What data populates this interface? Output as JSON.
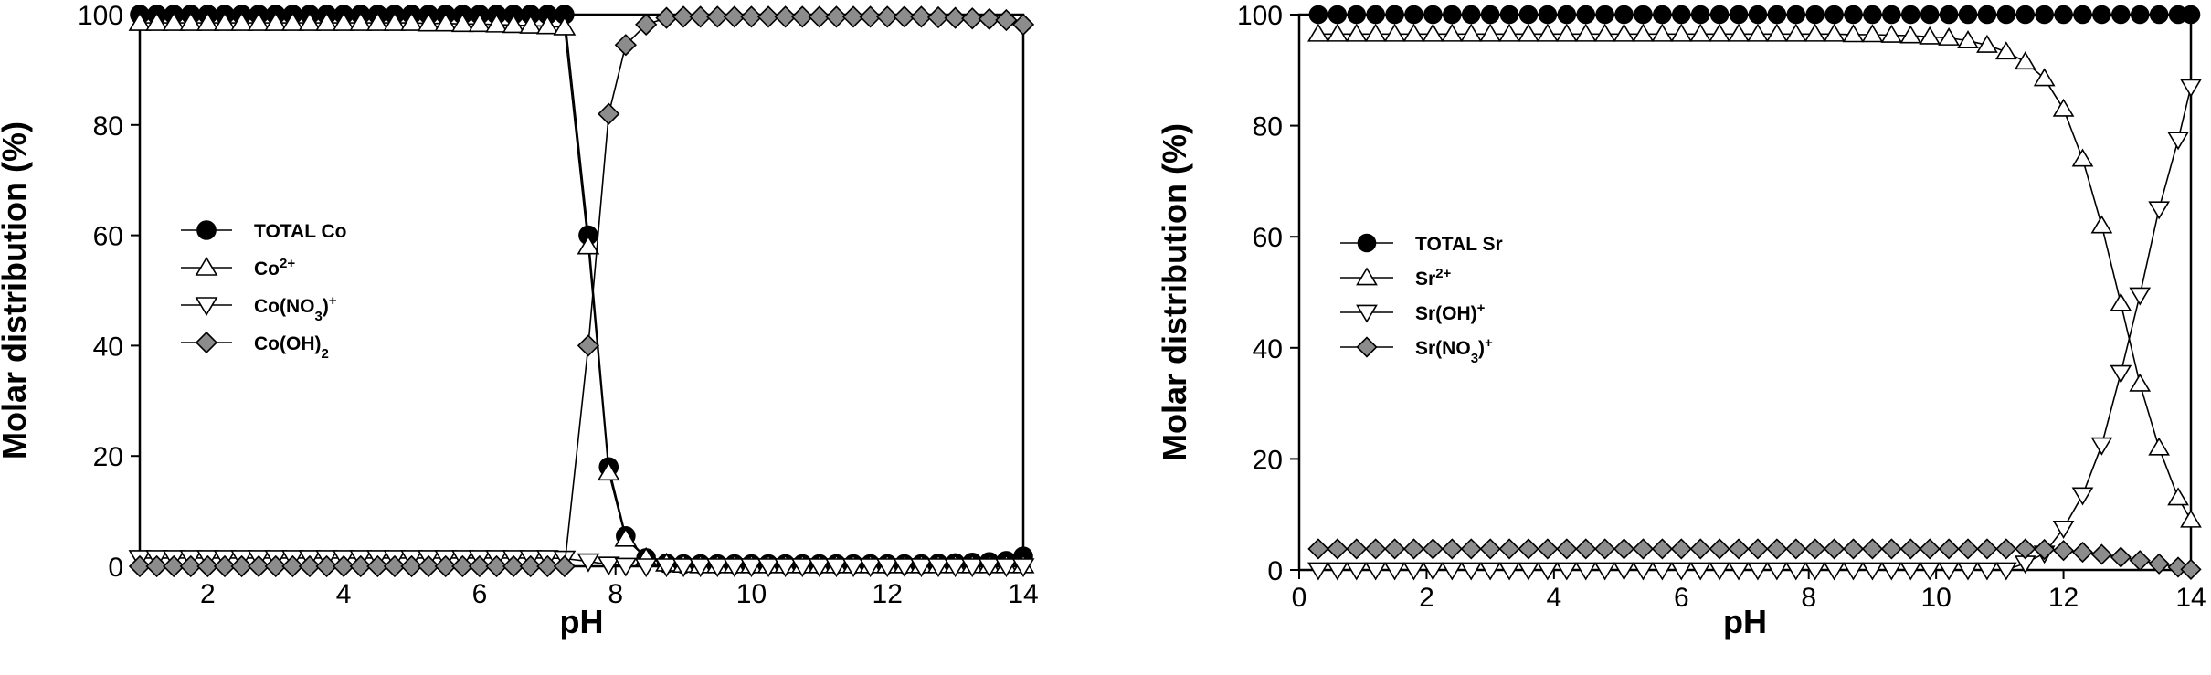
{
  "chart_data": [
    {
      "type": "line",
      "title": "",
      "xlabel": "pH",
      "ylabel": "Molar distribution (%)",
      "xlim": [
        1,
        14
      ],
      "ylim": [
        0,
        100
      ],
      "xticks": [
        2,
        4,
        6,
        8,
        10,
        12,
        14
      ],
      "yticks": [
        0,
        20,
        40,
        60,
        80,
        100
      ],
      "grid": false,
      "legend_position": "middle-left",
      "series": [
        {
          "name": "TOTAL Co",
          "legend": {
            "base": "TOTAL Co",
            "sub": "",
            "sup": "",
            "tail": ""
          },
          "marker": "circle",
          "fill": "#000000",
          "x": [
            1.0,
            1.25,
            1.5,
            1.75,
            2.0,
            2.25,
            2.5,
            2.75,
            3.0,
            3.25,
            3.5,
            3.75,
            4.0,
            4.25,
            4.5,
            4.75,
            5.0,
            5.25,
            5.5,
            5.75,
            6.0,
            6.25,
            6.5,
            6.75,
            7.0,
            7.25,
            7.6,
            7.9,
            8.15,
            8.45,
            8.75,
            9.0,
            9.25,
            9.5,
            9.75,
            10.0,
            10.25,
            10.5,
            10.75,
            11.0,
            11.25,
            11.5,
            11.75,
            12.0,
            12.25,
            12.5,
            12.75,
            13.0,
            13.25,
            13.5,
            13.75,
            14.0
          ],
          "y": [
            100,
            100,
            100,
            100,
            100,
            100,
            100,
            100,
            100,
            100,
            100,
            100,
            100,
            100,
            100,
            100,
            100,
            100,
            100,
            100,
            100,
            100,
            100,
            100,
            100,
            100,
            60,
            18,
            5.5,
            1.5,
            0.5,
            0.4,
            0.4,
            0.4,
            0.4,
            0.4,
            0.4,
            0.4,
            0.4,
            0.4,
            0.4,
            0.4,
            0.4,
            0.4,
            0.4,
            0.4,
            0.5,
            0.6,
            0.7,
            0.8,
            1.0,
            1.8
          ]
        },
        {
          "name": "Co2+",
          "legend": {
            "base": "Co",
            "sub": "",
            "sup": "2+",
            "tail": ""
          },
          "marker": "triangle-up",
          "fill": "#ffffff",
          "x": [
            1.0,
            1.25,
            1.5,
            1.75,
            2.0,
            2.25,
            2.5,
            2.75,
            3.0,
            3.25,
            3.5,
            3.75,
            4.0,
            4.25,
            4.5,
            4.75,
            5.0,
            5.25,
            5.5,
            5.75,
            6.0,
            6.25,
            6.5,
            6.75,
            7.0,
            7.25,
            7.6,
            7.9,
            8.15,
            8.45,
            8.75,
            9.0,
            9.25,
            9.5,
            9.75,
            10.0,
            10.25,
            10.5,
            10.75,
            11.0,
            11.25,
            11.5,
            11.75,
            12.0,
            12.25,
            12.5,
            12.75,
            13.0,
            13.25,
            13.5,
            13.75,
            14.0
          ],
          "y": [
            98.5,
            98.5,
            98.5,
            98.5,
            98.5,
            98.5,
            98.5,
            98.5,
            98.5,
            98.5,
            98.5,
            98.5,
            98.5,
            98.5,
            98.5,
            98.5,
            98.5,
            98.4,
            98.4,
            98.3,
            98.3,
            98.2,
            98.1,
            98.0,
            97.9,
            97.7,
            58,
            17,
            5,
            1.5,
            0.5,
            0.3,
            0.2,
            0.2,
            0.2,
            0.2,
            0.2,
            0.2,
            0.2,
            0.2,
            0.2,
            0.2,
            0.2,
            0.2,
            0.2,
            0.2,
            0.2,
            0.2,
            0.2,
            0.2,
            0.2,
            0.2
          ]
        },
        {
          "name": "Co(NO3)+",
          "legend": {
            "base": "Co(NO",
            "sub": "3",
            "sup": "+",
            "tail": ")"
          },
          "marker": "triangle-down",
          "fill": "#ffffff",
          "x": [
            1.0,
            1.25,
            1.5,
            1.75,
            2.0,
            2.25,
            2.5,
            2.75,
            3.0,
            3.25,
            3.5,
            3.75,
            4.0,
            4.25,
            4.5,
            4.75,
            5.0,
            5.25,
            5.5,
            5.75,
            6.0,
            6.25,
            6.5,
            6.75,
            7.0,
            7.25,
            7.6,
            7.9,
            8.15,
            8.45,
            8.75,
            9.0,
            9.25,
            9.5,
            9.75,
            10.0,
            10.25,
            10.5,
            10.75,
            11.0,
            11.25,
            11.5,
            11.75,
            12.0,
            12.25,
            12.5,
            12.75,
            13.0,
            13.25,
            13.5,
            13.75,
            14.0
          ],
          "y": [
            1.5,
            1.5,
            1.5,
            1.5,
            1.5,
            1.5,
            1.5,
            1.5,
            1.5,
            1.5,
            1.5,
            1.5,
            1.5,
            1.5,
            1.5,
            1.5,
            1.5,
            1.5,
            1.5,
            1.5,
            1.5,
            1.5,
            1.5,
            1.5,
            1.5,
            1.4,
            0.9,
            0.3,
            0.1,
            0,
            0,
            0,
            0,
            0,
            0,
            0,
            0,
            0,
            0,
            0,
            0,
            0,
            0,
            0,
            0,
            0,
            0,
            0,
            0,
            0,
            0,
            0
          ]
        },
        {
          "name": "Co(OH)2",
          "legend": {
            "base": "Co(OH)",
            "sub": "2",
            "sup": "",
            "tail": ""
          },
          "marker": "diamond",
          "fill": "#8c8c8c",
          "x": [
            1.0,
            1.25,
            1.5,
            1.75,
            2.0,
            2.25,
            2.5,
            2.75,
            3.0,
            3.25,
            3.5,
            3.75,
            4.0,
            4.25,
            4.5,
            4.75,
            5.0,
            5.25,
            5.5,
            5.75,
            6.0,
            6.25,
            6.5,
            6.75,
            7.0,
            7.25,
            7.6,
            7.9,
            8.15,
            8.45,
            8.75,
            9.0,
            9.25,
            9.5,
            9.75,
            10.0,
            10.25,
            10.5,
            10.75,
            11.0,
            11.25,
            11.5,
            11.75,
            12.0,
            12.25,
            12.5,
            12.75,
            13.0,
            13.25,
            13.5,
            13.75,
            14.0
          ],
          "y": [
            0,
            0,
            0,
            0,
            0,
            0,
            0,
            0,
            0,
            0,
            0,
            0,
            0,
            0,
            0,
            0,
            0,
            0,
            0,
            0,
            0,
            0,
            0,
            0,
            0,
            0,
            40,
            82,
            94.5,
            98.2,
            99.4,
            99.6,
            99.6,
            99.6,
            99.6,
            99.6,
            99.6,
            99.6,
            99.6,
            99.6,
            99.6,
            99.6,
            99.6,
            99.6,
            99.6,
            99.6,
            99.5,
            99.4,
            99.3,
            99.2,
            99.0,
            98.2
          ]
        }
      ]
    },
    {
      "type": "line",
      "title": "",
      "xlabel": "pH",
      "ylabel": "Molar distribution (%)",
      "xlim": [
        0,
        14
      ],
      "ylim": [
        0,
        100
      ],
      "xticks": [
        0,
        2,
        4,
        6,
        8,
        10,
        12,
        14
      ],
      "yticks": [
        0,
        20,
        40,
        60,
        80,
        100
      ],
      "grid": false,
      "legend_position": "middle-left",
      "series": [
        {
          "name": "TOTAL Sr",
          "legend": {
            "base": "TOTAL Sr",
            "sub": "",
            "sup": "",
            "tail": ""
          },
          "marker": "circle",
          "fill": "#000000",
          "x": [
            0.3,
            0.6,
            0.9,
            1.2,
            1.5,
            1.8,
            2.1,
            2.4,
            2.7,
            3.0,
            3.3,
            3.6,
            3.9,
            4.2,
            4.5,
            4.8,
            5.1,
            5.4,
            5.7,
            6.0,
            6.3,
            6.6,
            6.9,
            7.2,
            7.5,
            7.8,
            8.1,
            8.4,
            8.7,
            9.0,
            9.3,
            9.6,
            9.9,
            10.2,
            10.5,
            10.8,
            11.1,
            11.4,
            11.7,
            12.0,
            12.3,
            12.6,
            12.9,
            13.2,
            13.5,
            13.8,
            14.0
          ],
          "y": [
            100,
            100,
            100,
            100,
            100,
            100,
            100,
            100,
            100,
            100,
            100,
            100,
            100,
            100,
            100,
            100,
            100,
            100,
            100,
            100,
            100,
            100,
            100,
            100,
            100,
            100,
            100,
            100,
            100,
            100,
            100,
            100,
            100,
            100,
            100,
            100,
            100,
            100,
            100,
            100,
            100,
            100,
            100,
            100,
            100,
            100,
            100
          ]
        },
        {
          "name": "Sr2+",
          "legend": {
            "base": "Sr",
            "sub": "",
            "sup": "2+",
            "tail": ""
          },
          "marker": "triangle-up",
          "fill": "#ffffff",
          "x": [
            0.3,
            0.6,
            0.9,
            1.2,
            1.5,
            1.8,
            2.1,
            2.4,
            2.7,
            3.0,
            3.3,
            3.6,
            3.9,
            4.2,
            4.5,
            4.8,
            5.1,
            5.4,
            5.7,
            6.0,
            6.3,
            6.6,
            6.9,
            7.2,
            7.5,
            7.8,
            8.1,
            8.4,
            8.7,
            9.0,
            9.3,
            9.6,
            9.9,
            10.2,
            10.5,
            10.8,
            11.1,
            11.4,
            11.7,
            12.0,
            12.3,
            12.6,
            12.9,
            13.2,
            13.5,
            13.8,
            14.0
          ],
          "y": [
            96.5,
            96.5,
            96.5,
            96.5,
            96.5,
            96.5,
            96.5,
            96.5,
            96.5,
            96.5,
            96.5,
            96.5,
            96.5,
            96.5,
            96.5,
            96.5,
            96.5,
            96.5,
            96.5,
            96.5,
            96.5,
            96.5,
            96.5,
            96.5,
            96.5,
            96.5,
            96.5,
            96.5,
            96.4,
            96.4,
            96.3,
            96.2,
            96.0,
            95.8,
            95.3,
            94.5,
            93.3,
            91.5,
            88.5,
            83,
            74,
            62,
            48,
            33.5,
            22,
            13,
            9
          ]
        },
        {
          "name": "Sr(OH)+",
          "legend": {
            "base": "Sr(OH)",
            "sub": "",
            "sup": "+",
            "tail": ""
          },
          "marker": "triangle-down",
          "fill": "#ffffff",
          "x": [
            0.3,
            0.6,
            0.9,
            1.2,
            1.5,
            1.8,
            2.1,
            2.4,
            2.7,
            3.0,
            3.3,
            3.6,
            3.9,
            4.2,
            4.5,
            4.8,
            5.1,
            5.4,
            5.7,
            6.0,
            6.3,
            6.6,
            6.9,
            7.2,
            7.5,
            7.8,
            8.1,
            8.4,
            8.7,
            9.0,
            9.3,
            9.6,
            9.9,
            10.2,
            10.5,
            10.8,
            11.1,
            11.4,
            11.7,
            12.0,
            12.3,
            12.6,
            12.9,
            13.2,
            13.5,
            13.8,
            14.0
          ],
          "y": [
            0,
            0,
            0,
            0,
            0,
            0,
            0,
            0,
            0,
            0,
            0,
            0,
            0,
            0,
            0,
            0,
            0,
            0,
            0,
            0,
            0,
            0,
            0,
            0,
            0,
            0,
            0,
            0,
            0,
            0,
            0,
            0,
            0,
            0,
            0,
            0,
            0,
            1.2,
            3,
            7.5,
            13.5,
            22.5,
            35.5,
            49.5,
            65,
            77.5,
            87
          ]
        },
        {
          "name": "Sr(NO3)+",
          "legend": {
            "base": "Sr(NO",
            "sub": "3",
            "sup": "+",
            "tail": ")"
          },
          "marker": "diamond",
          "fill": "#8c8c8c",
          "x": [
            0.3,
            0.6,
            0.9,
            1.2,
            1.5,
            1.8,
            2.1,
            2.4,
            2.7,
            3.0,
            3.3,
            3.6,
            3.9,
            4.2,
            4.5,
            4.8,
            5.1,
            5.4,
            5.7,
            6.0,
            6.3,
            6.6,
            6.9,
            7.2,
            7.5,
            7.8,
            8.1,
            8.4,
            8.7,
            9.0,
            9.3,
            9.6,
            9.9,
            10.2,
            10.5,
            10.8,
            11.1,
            11.4,
            11.7,
            12.0,
            12.3,
            12.6,
            12.9,
            13.2,
            13.5,
            13.8,
            14.0
          ],
          "y": [
            3.8,
            3.8,
            3.8,
            3.8,
            3.8,
            3.8,
            3.8,
            3.8,
            3.8,
            3.8,
            3.8,
            3.8,
            3.8,
            3.8,
            3.8,
            3.8,
            3.8,
            3.8,
            3.8,
            3.8,
            3.8,
            3.8,
            3.8,
            3.8,
            3.8,
            3.8,
            3.8,
            3.8,
            3.8,
            3.8,
            3.8,
            3.8,
            3.8,
            3.8,
            3.8,
            3.8,
            3.8,
            3.8,
            3.7,
            3.5,
            3.2,
            2.8,
            2.3,
            1.7,
            1.1,
            0.5,
            0.1
          ]
        }
      ]
    }
  ]
}
